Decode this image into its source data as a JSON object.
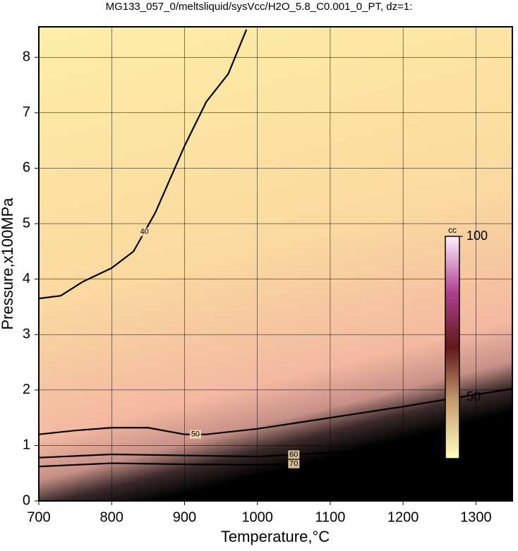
{
  "chart_data": {
    "type": "contour",
    "title": "MG133_057_0/meltsliquid/sysVcc/H2O_5.8_C0.001_0_PT, dz=1:",
    "x_label": "Temperature,°C",
    "y_label": "Pressure,x100MPa",
    "xlim": [
      700,
      1350
    ],
    "xticks": [
      700,
      800,
      900,
      1000,
      1100,
      1200,
      1300
    ],
    "ylim": [
      0,
      8.55
    ],
    "yticks": [
      0,
      1,
      2,
      3,
      4,
      5,
      6,
      7,
      8
    ],
    "grid": true,
    "contours": [
      {
        "level": 40,
        "label": "40",
        "color": "#000000",
        "x": [
          700,
          730,
          760,
          800,
          830,
          860,
          900,
          930,
          960,
          985
        ],
        "y": [
          3.65,
          3.7,
          3.95,
          4.2,
          4.5,
          5.2,
          6.4,
          7.2,
          7.7,
          8.5
        ]
      },
      {
        "level": 50,
        "label": "50",
        "color": "#000000",
        "x": [
          700,
          750,
          800,
          850,
          900,
          930,
          1000,
          1100,
          1200,
          1300,
          1350
        ],
        "y": [
          1.2,
          1.27,
          1.32,
          1.32,
          1.2,
          1.2,
          1.3,
          1.5,
          1.7,
          1.92,
          2.02
        ]
      },
      {
        "level": 60,
        "label": "60",
        "color": "#000000",
        "x": [
          700,
          800,
          900,
          1000,
          1100,
          1200,
          1300,
          1350
        ],
        "y": [
          0.78,
          0.84,
          0.82,
          0.8,
          0.87,
          0.95,
          1.04,
          1.08
        ]
      },
      {
        "level": 70,
        "label": "70",
        "color": "#000000",
        "x": [
          700,
          800,
          900,
          1000,
          1100,
          1200,
          1300,
          1350
        ],
        "y": [
          0.62,
          0.68,
          0.66,
          0.65,
          0.68,
          0.72,
          0.76,
          0.78
        ]
      }
    ],
    "colorbar": {
      "label": "cc",
      "clim": [
        31,
        100
      ],
      "ticks": [
        50,
        100
      ]
    }
  }
}
